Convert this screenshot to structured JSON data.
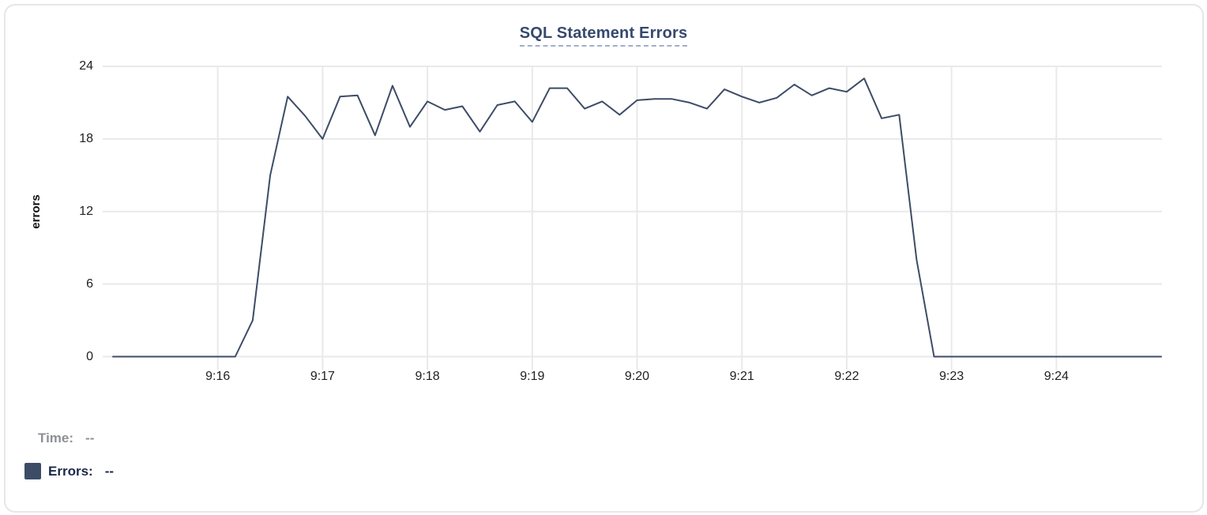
{
  "card": {
    "title": "SQL Statement Errors"
  },
  "chart_data": {
    "type": "line",
    "title": "SQL Statement Errors",
    "xlabel": "",
    "ylabel": "errors",
    "ylim": [
      0,
      24
    ],
    "y_ticks": [
      0,
      6,
      12,
      18,
      24
    ],
    "x_tick_labels": [
      "9:16",
      "9:17",
      "9:18",
      "9:19",
      "9:20",
      "9:21",
      "9:22",
      "9:23",
      "9:24"
    ],
    "grid": true,
    "legend_position": "bottom-left",
    "x": [
      "9:15:00",
      "9:15:10",
      "9:15:20",
      "9:15:30",
      "9:15:40",
      "9:15:50",
      "9:16:00",
      "9:16:10",
      "9:16:20",
      "9:16:30",
      "9:16:40",
      "9:16:50",
      "9:17:00",
      "9:17:10",
      "9:17:20",
      "9:17:30",
      "9:17:40",
      "9:17:50",
      "9:18:00",
      "9:18:10",
      "9:18:20",
      "9:18:30",
      "9:18:40",
      "9:18:50",
      "9:19:00",
      "9:19:10",
      "9:19:20",
      "9:19:30",
      "9:19:40",
      "9:19:50",
      "9:20:00",
      "9:20:10",
      "9:20:20",
      "9:20:30",
      "9:20:40",
      "9:20:50",
      "9:21:00",
      "9:21:10",
      "9:21:20",
      "9:21:30",
      "9:21:40",
      "9:21:50",
      "9:22:00",
      "9:22:10",
      "9:22:20",
      "9:22:30",
      "9:22:40",
      "9:22:50",
      "9:23:00",
      "9:23:10",
      "9:23:20",
      "9:23:30",
      "9:23:40",
      "9:23:50",
      "9:24:00",
      "9:24:10",
      "9:24:20",
      "9:24:30",
      "9:24:40",
      "9:24:50",
      "9:25:00"
    ],
    "series": [
      {
        "name": "Errors",
        "values": [
          0,
          0,
          0,
          0,
          0,
          0,
          0,
          0,
          3,
          15,
          21.5,
          19.9,
          18,
          21.5,
          21.6,
          18.3,
          22.4,
          19,
          21.1,
          20.4,
          20.7,
          18.6,
          20.8,
          21.1,
          19.4,
          22.2,
          22.2,
          20.5,
          21.1,
          20,
          21.2,
          21.3,
          21.3,
          21,
          20.5,
          22.1,
          21.5,
          21,
          21.4,
          22.5,
          21.6,
          22.2,
          21.9,
          23,
          19.7,
          20,
          8,
          0,
          0,
          0,
          0,
          0,
          0,
          0,
          0,
          0,
          0,
          0,
          0,
          0,
          0
        ]
      }
    ]
  },
  "legend": {
    "rows": [
      {
        "label": "Time:",
        "value": "--",
        "swatch": false
      },
      {
        "label": "Errors:",
        "value": "--",
        "swatch": true
      }
    ]
  },
  "colors": {
    "series": "#3d4c66",
    "title": "#36496e",
    "grid": "#e9e9e9",
    "tick_text": "#202124",
    "time_label": "#8d9095",
    "errors_label": "#1d294a"
  }
}
